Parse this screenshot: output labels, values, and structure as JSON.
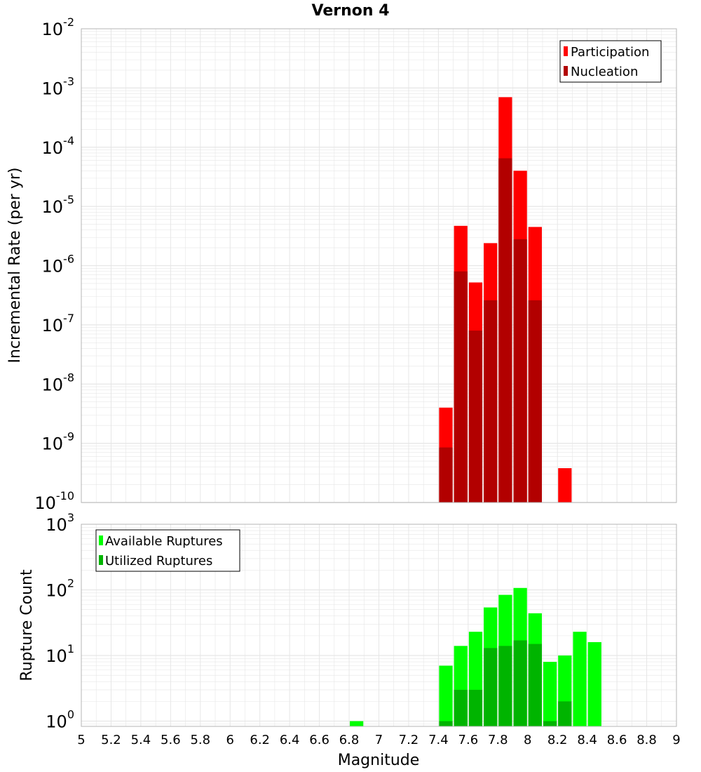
{
  "chart_data": {
    "title": "Vernon 4",
    "xlabel": "Magnitude",
    "xlim": [
      5,
      9
    ],
    "x_ticks": [
      "5",
      "5.2",
      "5.4",
      "5.6",
      "5.8",
      "6",
      "6.2",
      "6.4",
      "6.6",
      "6.8",
      "7",
      "7.2",
      "7.4",
      "7.6",
      "7.8",
      "8",
      "8.2",
      "8.4",
      "8.6",
      "8.8",
      "9"
    ],
    "bin_width": 0.1,
    "colors": {
      "participation": "#ff0000",
      "nucleation": "#b20000",
      "available": "#00ff00",
      "utilized": "#00b400",
      "grid": "#e6e6e6",
      "frame": "#b4b4b4"
    },
    "panels": [
      {
        "id": "rate",
        "type": "bar",
        "yscale": "log",
        "ylabel": "Incremental Rate (per yr)",
        "ylim_exp": [
          -10,
          -2
        ],
        "y_ticks": [
          {
            "base": "10",
            "exp": "-10"
          },
          {
            "base": "10",
            "exp": "-9"
          },
          {
            "base": "10",
            "exp": "-8"
          },
          {
            "base": "10",
            "exp": "-7"
          },
          {
            "base": "10",
            "exp": "-6"
          },
          {
            "base": "10",
            "exp": "-5"
          },
          {
            "base": "10",
            "exp": "-4"
          },
          {
            "base": "10",
            "exp": "-3"
          },
          {
            "base": "10",
            "exp": "-2"
          }
        ],
        "legend": {
          "position": "top-right",
          "entries": [
            "Participation",
            "Nucleation"
          ]
        },
        "series": [
          {
            "name": "Participation",
            "color_key": "participation",
            "x": [
              7.45,
              7.55,
              7.65,
              7.75,
              7.85,
              7.95,
              8.05,
              8.25
            ],
            "values": [
              4e-09,
              4.7e-06,
              5.2e-07,
              2.4e-06,
              0.0007,
              4e-05,
              4.5e-06,
              3.8e-10
            ]
          },
          {
            "name": "Nucleation",
            "color_key": "nucleation",
            "x": [
              7.45,
              7.55,
              7.65,
              7.75,
              7.85,
              7.95,
              8.05
            ],
            "values": [
              8.5e-10,
              8e-07,
              8e-08,
              2.6e-07,
              6.5e-05,
              2.8e-06,
              2.6e-07
            ]
          }
        ]
      },
      {
        "id": "count",
        "type": "bar",
        "yscale": "log",
        "ylabel": "Rupture Count",
        "ylim_exp": [
          -0.08,
          3
        ],
        "y_ticks": [
          {
            "base": "10",
            "exp": "0"
          },
          {
            "base": "10",
            "exp": "1"
          },
          {
            "base": "10",
            "exp": "2"
          },
          {
            "base": "10",
            "exp": "3"
          }
        ],
        "legend": {
          "position": "top-left",
          "entries": [
            "Available Ruptures",
            "Utilized Ruptures"
          ]
        },
        "series": [
          {
            "name": "Available Ruptures",
            "color_key": "available",
            "x": [
              6.85,
              7.45,
              7.55,
              7.65,
              7.75,
              7.85,
              7.95,
              8.05,
              8.15,
              8.25,
              8.35,
              8.45
            ],
            "values": [
              1,
              7,
              14,
              23,
              54,
              84,
              107,
              44,
              8,
              10,
              23,
              16
            ]
          },
          {
            "name": "Utilized Ruptures",
            "color_key": "utilized",
            "x": [
              7.45,
              7.55,
              7.65,
              7.75,
              7.85,
              7.95,
              8.05,
              8.15,
              8.25
            ],
            "values": [
              1,
              3,
              3,
              13,
              14,
              17,
              15,
              1,
              2
            ]
          }
        ]
      }
    ]
  }
}
